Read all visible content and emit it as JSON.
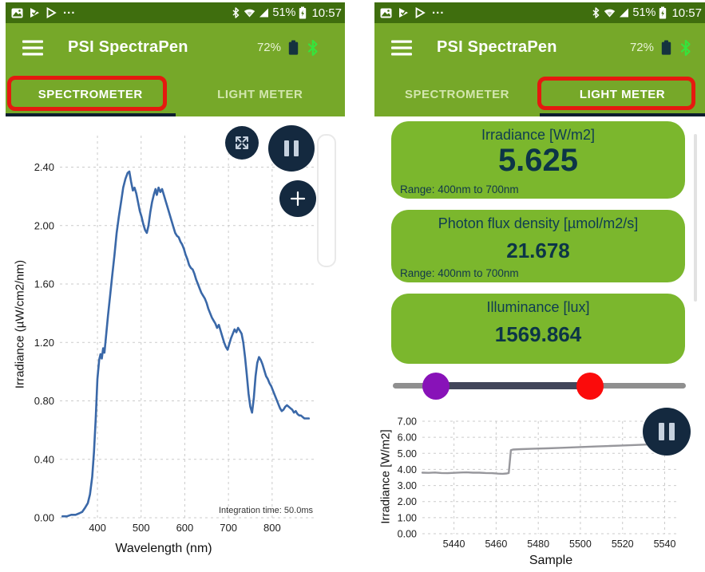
{
  "statusbar": {
    "overflow": "...",
    "battery_percent": "51%",
    "time": "10:57"
  },
  "appbar": {
    "title": "PSI SpectraPen",
    "device_battery": "72%"
  },
  "tabs": {
    "spectrometer": "SPECTROMETER",
    "light_meter": "LIGHT METER"
  },
  "light_meter": {
    "cards": [
      {
        "title": "Irradiance [W/m2]",
        "value": "5.625",
        "range": "Range: 400nm to 700nm"
      },
      {
        "title": "Photon flux density [µmol/m2/s]",
        "value": "21.678",
        "range": "Range: 400nm to 700nm"
      },
      {
        "title": "Illuminance [lux]",
        "value": "1569.864",
        "range": ""
      }
    ]
  },
  "colors": {
    "statusbar_green": "#3f6e0e",
    "header_green": "#76a829",
    "card_green": "#7bb72d",
    "navy_button": "#14293f",
    "navy_text": "#0c3547",
    "annotation_red": "#e5190f",
    "spectrum_line": "#3a68a8",
    "sample_line": "#97979c",
    "slider_min_handle": "#8812b8",
    "slider_max_handle": "#fb0b0b",
    "bluetooth_green": "#35e43c"
  },
  "chart_data": [
    {
      "id": "spectrum",
      "type": "line",
      "xlabel": "Wavelength (nm)",
      "ylabel": "Irradiance (µW/cm2/nm)",
      "xlim": [
        314,
        899
      ],
      "ylim": [
        0,
        2.616
      ],
      "xticks": [
        400,
        500,
        600,
        700,
        800
      ],
      "xtick_labels": [
        "400",
        "500",
        "600",
        "700",
        "800"
      ],
      "yticks": [
        0,
        0.4,
        0.8,
        1.2,
        1.6,
        2.0,
        2.4
      ],
      "ytick_labels": [
        "0.00",
        "0.40",
        "0.80",
        "1.20",
        "1.60",
        "2.00",
        "2.40"
      ],
      "line_color": "#3a68a8",
      "line_width": 2.6,
      "grid": true,
      "legend": "none",
      "annotation": "Integration time: 50.0ms",
      "points": [
        [
          320,
          0.01
        ],
        [
          330,
          0.01
        ],
        [
          340,
          0.02
        ],
        [
          350,
          0.02
        ],
        [
          358,
          0.03
        ],
        [
          365,
          0.04
        ],
        [
          372,
          0.07
        ],
        [
          378,
          0.1
        ],
        [
          383,
          0.16
        ],
        [
          388,
          0.28
        ],
        [
          392,
          0.45
        ],
        [
          396,
          0.68
        ],
        [
          400,
          0.95
        ],
        [
          404,
          1.08
        ],
        [
          407,
          1.12
        ],
        [
          410,
          1.09
        ],
        [
          413,
          1.16
        ],
        [
          416,
          1.13
        ],
        [
          419,
          1.22
        ],
        [
          424,
          1.38
        ],
        [
          429,
          1.52
        ],
        [
          434,
          1.66
        ],
        [
          439,
          1.8
        ],
        [
          444,
          1.95
        ],
        [
          449,
          2.06
        ],
        [
          454,
          2.16
        ],
        [
          459,
          2.26
        ],
        [
          464,
          2.32
        ],
        [
          469,
          2.36
        ],
        [
          473,
          2.37
        ],
        [
          477,
          2.3
        ],
        [
          481,
          2.24
        ],
        [
          485,
          2.26
        ],
        [
          489,
          2.22
        ],
        [
          493,
          2.16
        ],
        [
          497,
          2.1
        ],
        [
          501,
          2.06
        ],
        [
          505,
          2.01
        ],
        [
          509,
          1.97
        ],
        [
          513,
          1.95
        ],
        [
          517,
          2.0
        ],
        [
          521,
          2.09
        ],
        [
          525,
          2.16
        ],
        [
          529,
          2.21
        ],
        [
          533,
          2.25
        ],
        [
          536,
          2.21
        ],
        [
          540,
          2.26
        ],
        [
          544,
          2.23
        ],
        [
          548,
          2.25
        ],
        [
          552,
          2.21
        ],
        [
          556,
          2.17
        ],
        [
          560,
          2.13
        ],
        [
          565,
          2.08
        ],
        [
          570,
          2.03
        ],
        [
          574,
          1.99
        ],
        [
          578,
          1.95
        ],
        [
          582,
          1.93
        ],
        [
          586,
          1.92
        ],
        [
          590,
          1.89
        ],
        [
          594,
          1.87
        ],
        [
          598,
          1.84
        ],
        [
          602,
          1.8
        ],
        [
          606,
          1.77
        ],
        [
          610,
          1.73
        ],
        [
          614,
          1.71
        ],
        [
          618,
          1.7
        ],
        [
          622,
          1.67
        ],
        [
          626,
          1.63
        ],
        [
          630,
          1.6
        ],
        [
          634,
          1.57
        ],
        [
          638,
          1.54
        ],
        [
          642,
          1.52
        ],
        [
          646,
          1.5
        ],
        [
          650,
          1.47
        ],
        [
          654,
          1.43
        ],
        [
          658,
          1.4
        ],
        [
          662,
          1.37
        ],
        [
          666,
          1.35
        ],
        [
          670,
          1.33
        ],
        [
          674,
          1.3
        ],
        [
          678,
          1.32
        ],
        [
          682,
          1.28
        ],
        [
          686,
          1.24
        ],
        [
          690,
          1.2
        ],
        [
          694,
          1.17
        ],
        [
          698,
          1.15
        ],
        [
          702,
          1.19
        ],
        [
          706,
          1.23
        ],
        [
          710,
          1.26
        ],
        [
          714,
          1.29
        ],
        [
          718,
          1.27
        ],
        [
          722,
          1.3
        ],
        [
          726,
          1.28
        ],
        [
          730,
          1.26
        ],
        [
          734,
          1.2
        ],
        [
          738,
          1.1
        ],
        [
          742,
          0.98
        ],
        [
          746,
          0.85
        ],
        [
          750,
          0.76
        ],
        [
          754,
          0.72
        ],
        [
          758,
          0.82
        ],
        [
          762,
          0.97
        ],
        [
          766,
          1.06
        ],
        [
          770,
          1.1
        ],
        [
          774,
          1.08
        ],
        [
          778,
          1.05
        ],
        [
          782,
          1.01
        ],
        [
          786,
          0.97
        ],
        [
          790,
          0.95
        ],
        [
          794,
          0.92
        ],
        [
          798,
          0.9
        ],
        [
          802,
          0.87
        ],
        [
          806,
          0.84
        ],
        [
          810,
          0.81
        ],
        [
          814,
          0.78
        ],
        [
          818,
          0.75
        ],
        [
          822,
          0.73
        ],
        [
          826,
          0.74
        ],
        [
          830,
          0.76
        ],
        [
          834,
          0.77
        ],
        [
          838,
          0.76
        ],
        [
          842,
          0.75
        ],
        [
          846,
          0.74
        ],
        [
          850,
          0.72
        ],
        [
          854,
          0.73
        ],
        [
          858,
          0.71
        ],
        [
          862,
          0.7
        ],
        [
          866,
          0.7
        ],
        [
          870,
          0.69
        ],
        [
          874,
          0.68
        ],
        [
          878,
          0.68
        ],
        [
          884,
          0.68
        ]
      ]
    },
    {
      "id": "samples",
      "type": "line",
      "xlabel": "Sample",
      "ylabel": "Irradiance [W/m2]",
      "xlim": [
        5425,
        5547
      ],
      "ylim": [
        0,
        7
      ],
      "xticks": [
        5440,
        5460,
        5480,
        5500,
        5520,
        5540
      ],
      "xtick_labels": [
        "5440",
        "5460",
        "5480",
        "5500",
        "5520",
        "5540"
      ],
      "yticks": [
        0,
        1,
        2,
        3,
        4,
        5,
        6,
        7
      ],
      "ytick_labels": [
        "0.00",
        "1.00",
        "2.00",
        "3.00",
        "4.00",
        "5.00",
        "6.00",
        "7.00"
      ],
      "line_color": "#97979c",
      "line_width": 2.4,
      "grid": true,
      "legend": "none",
      "annotation": "",
      "points": [
        [
          5425,
          3.8
        ],
        [
          5428,
          3.79
        ],
        [
          5431,
          3.81
        ],
        [
          5434,
          3.78
        ],
        [
          5437,
          3.77
        ],
        [
          5440,
          3.79
        ],
        [
          5443,
          3.81
        ],
        [
          5446,
          3.82
        ],
        [
          5449,
          3.8
        ],
        [
          5452,
          3.8
        ],
        [
          5455,
          3.78
        ],
        [
          5458,
          3.77
        ],
        [
          5461,
          3.74
        ],
        [
          5463,
          3.73
        ],
        [
          5465,
          3.75
        ],
        [
          5466,
          3.78
        ],
        [
          5467,
          5.2
        ],
        [
          5468,
          5.24
        ],
        [
          5472,
          5.26
        ],
        [
          5478,
          5.29
        ],
        [
          5484,
          5.31
        ],
        [
          5490,
          5.34
        ],
        [
          5496,
          5.37
        ],
        [
          5502,
          5.4
        ],
        [
          5508,
          5.43
        ],
        [
          5514,
          5.46
        ],
        [
          5520,
          5.49
        ],
        [
          5526,
          5.52
        ],
        [
          5532,
          5.55
        ],
        [
          5538,
          5.57
        ],
        [
          5544,
          5.59
        ],
        [
          5547,
          5.6
        ]
      ]
    }
  ]
}
